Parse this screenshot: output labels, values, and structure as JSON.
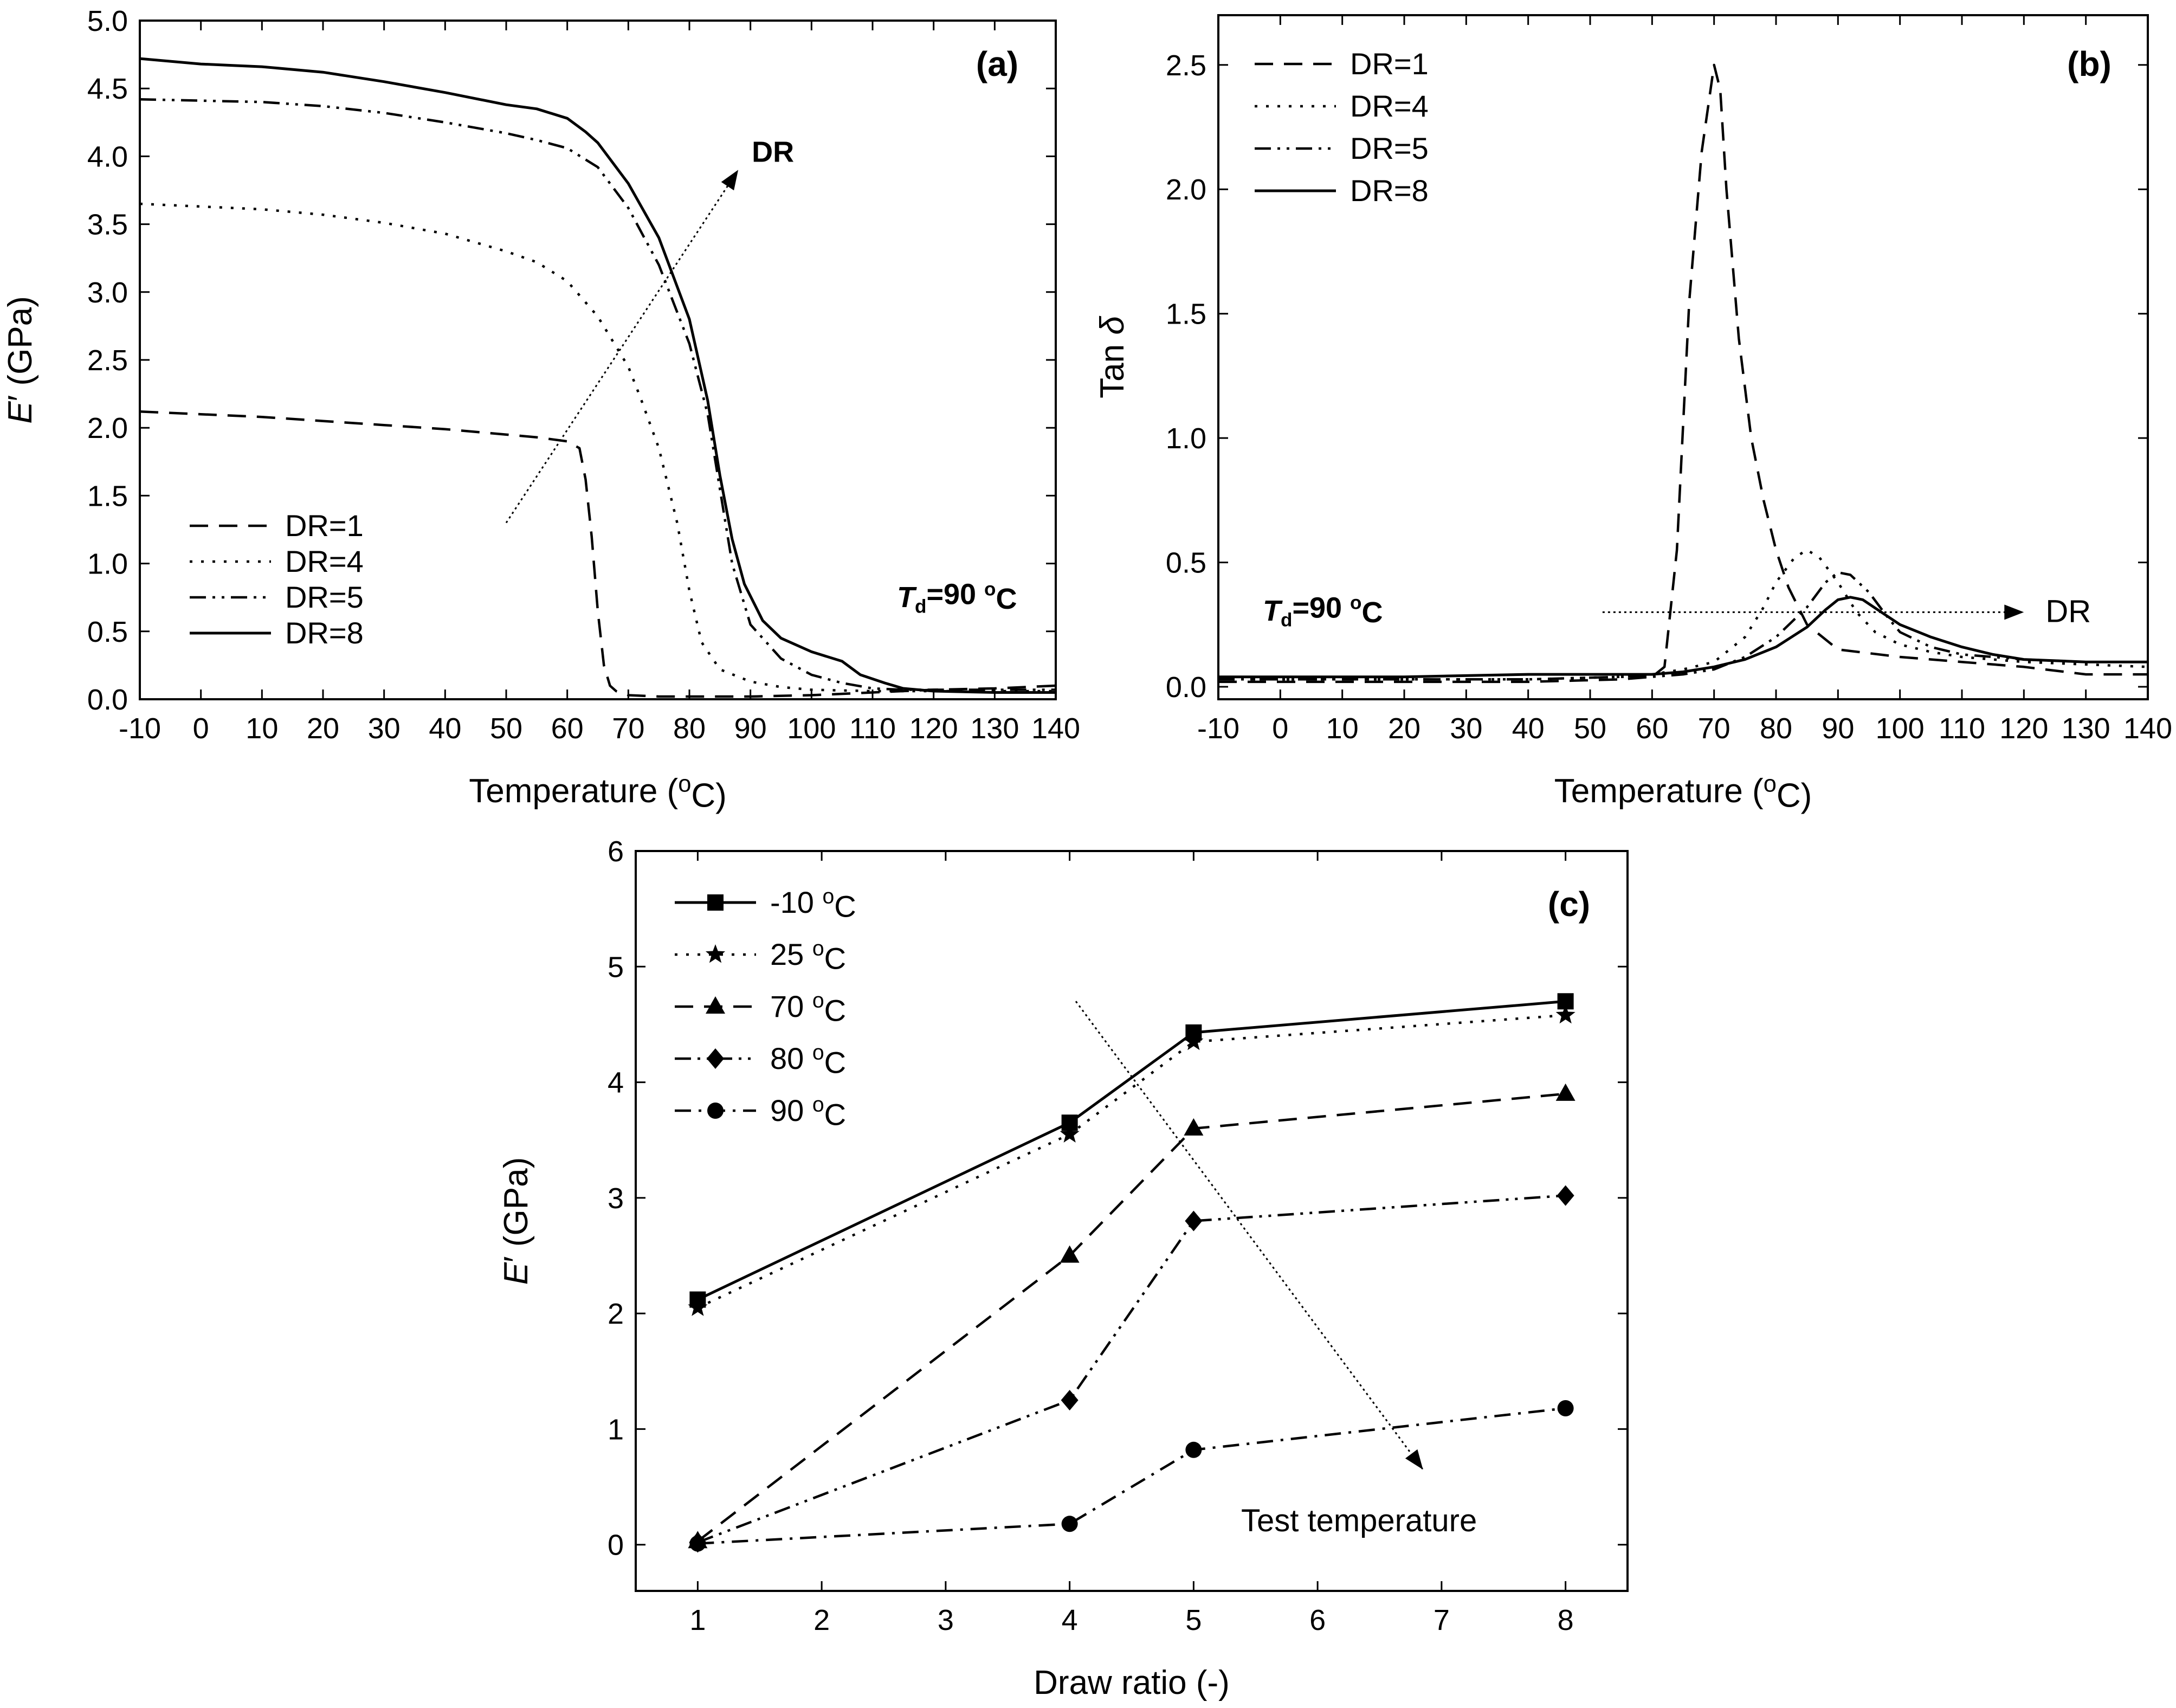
{
  "chart_data": [
    {
      "panel": "(a)",
      "type": "line",
      "xlabel": "Temperature (oC)",
      "ylabel": "E′ (GPa)",
      "xlim": [
        -10,
        140
      ],
      "ylim": [
        0,
        5
      ],
      "xticks": [
        -10,
        0,
        10,
        20,
        30,
        40,
        50,
        60,
        70,
        80,
        90,
        100,
        110,
        120,
        130,
        140
      ],
      "yticks": [
        "0.0",
        "0.5",
        "1.0",
        "1.5",
        "2.0",
        "2.5",
        "3.0",
        "3.5",
        "4.0",
        "4.5",
        "5.0"
      ],
      "legend_position": "bottom-left",
      "annotation_text": "DR",
      "condition_text": "Td=90 oC",
      "arrow": {
        "from": [
          50,
          1.3
        ],
        "to": [
          88,
          3.9
        ],
        "label": "DR"
      },
      "series": [
        {
          "name": "DR=1",
          "dash": "dashed",
          "x": [
            -10,
            0,
            10,
            20,
            30,
            40,
            50,
            55,
            60,
            62,
            63,
            64,
            65,
            66,
            67,
            68,
            70,
            75,
            80,
            90,
            100,
            110,
            120,
            130,
            140
          ],
          "y": [
            2.12,
            2.1,
            2.08,
            2.05,
            2.02,
            1.99,
            1.95,
            1.93,
            1.9,
            1.85,
            1.62,
            1.2,
            0.65,
            0.25,
            0.1,
            0.06,
            0.03,
            0.02,
            0.02,
            0.02,
            0.03,
            0.05,
            0.07,
            0.08,
            0.1
          ]
        },
        {
          "name": "DR=4",
          "dash": "dotted",
          "x": [
            -10,
            0,
            10,
            20,
            30,
            40,
            50,
            55,
            60,
            65,
            70,
            72,
            75,
            78,
            80,
            82,
            85,
            90,
            95,
            100,
            110,
            120,
            130,
            140
          ],
          "y": [
            3.65,
            3.63,
            3.61,
            3.57,
            3.51,
            3.43,
            3.3,
            3.22,
            3.08,
            2.82,
            2.45,
            2.22,
            1.85,
            1.3,
            0.8,
            0.42,
            0.22,
            0.13,
            0.09,
            0.07,
            0.06,
            0.06,
            0.06,
            0.06
          ]
        },
        {
          "name": "DR=5",
          "dash": "dashdotdot",
          "x": [
            -10,
            0,
            10,
            20,
            30,
            40,
            50,
            55,
            60,
            65,
            70,
            75,
            80,
            83,
            85,
            87,
            90,
            95,
            100,
            105,
            110,
            115,
            120,
            130,
            140
          ],
          "y": [
            4.42,
            4.41,
            4.4,
            4.37,
            4.32,
            4.25,
            4.17,
            4.12,
            4.06,
            3.92,
            3.62,
            3.2,
            2.62,
            2.1,
            1.55,
            1.0,
            0.55,
            0.3,
            0.18,
            0.12,
            0.08,
            0.07,
            0.07,
            0.07,
            0.07
          ]
        },
        {
          "name": "DR=8",
          "dash": "solid",
          "x": [
            -10,
            0,
            5,
            10,
            20,
            30,
            40,
            50,
            55,
            60,
            63,
            65,
            70,
            75,
            80,
            83,
            85,
            87,
            89,
            92,
            95,
            100,
            105,
            108,
            112,
            115,
            120,
            130,
            140
          ],
          "y": [
            4.72,
            4.68,
            4.67,
            4.66,
            4.62,
            4.55,
            4.47,
            4.38,
            4.35,
            4.28,
            4.18,
            4.1,
            3.8,
            3.4,
            2.8,
            2.2,
            1.65,
            1.18,
            0.85,
            0.58,
            0.45,
            0.35,
            0.28,
            0.18,
            0.12,
            0.08,
            0.06,
            0.05,
            0.05
          ]
        }
      ]
    },
    {
      "panel": "(b)",
      "type": "line",
      "xlabel": "Temperature (oC)",
      "ylabel": "Tan δ",
      "xlim": [
        -10,
        140
      ],
      "ylim": [
        -0.05,
        2.7
      ],
      "xticks": [
        -10,
        0,
        10,
        20,
        30,
        40,
        50,
        60,
        70,
        80,
        90,
        100,
        110,
        120,
        130,
        140
      ],
      "yticks": [
        "0.0",
        "0.5",
        "1.0",
        "1.5",
        "2.0",
        "2.5"
      ],
      "legend_position": "top-left",
      "annotation_text": "DR",
      "condition_text": "Td=90 oC",
      "arrow": {
        "from": [
          52,
          0.3
        ],
        "to": [
          120,
          0.3
        ],
        "label": "DR"
      },
      "series": [
        {
          "name": "DR=1",
          "dash": "dashed",
          "x": [
            -10,
            0,
            20,
            40,
            55,
            60,
            62,
            64,
            66,
            68,
            70,
            71,
            72,
            74,
            76,
            78,
            80,
            82,
            85,
            90,
            100,
            110,
            120,
            130,
            140
          ],
          "y": [
            0.02,
            0.02,
            0.02,
            0.02,
            0.03,
            0.04,
            0.08,
            0.55,
            1.55,
            2.15,
            2.5,
            2.4,
            2.0,
            1.4,
            1.0,
            0.75,
            0.55,
            0.4,
            0.25,
            0.15,
            0.12,
            0.1,
            0.08,
            0.05,
            0.05
          ]
        },
        {
          "name": "DR=4",
          "dash": "dotted",
          "x": [
            -10,
            0,
            20,
            40,
            55,
            60,
            65,
            70,
            75,
            78,
            80,
            83,
            85,
            87,
            90,
            93,
            96,
            100,
            105,
            110,
            120,
            130,
            140
          ],
          "y": [
            0.03,
            0.03,
            0.03,
            0.03,
            0.04,
            0.05,
            0.07,
            0.1,
            0.2,
            0.32,
            0.42,
            0.52,
            0.55,
            0.52,
            0.42,
            0.3,
            0.22,
            0.17,
            0.14,
            0.12,
            0.1,
            0.09,
            0.08
          ]
        },
        {
          "name": "DR=5",
          "dash": "dashdotdot",
          "x": [
            -10,
            0,
            20,
            40,
            55,
            60,
            65,
            70,
            75,
            80,
            85,
            88,
            90,
            92,
            95,
            98,
            100,
            105,
            110,
            120,
            130,
            140
          ],
          "y": [
            0.03,
            0.03,
            0.03,
            0.03,
            0.04,
            0.04,
            0.05,
            0.07,
            0.12,
            0.2,
            0.32,
            0.42,
            0.46,
            0.45,
            0.38,
            0.28,
            0.22,
            0.16,
            0.13,
            0.11,
            0.1,
            0.1
          ]
        },
        {
          "name": "DR=8",
          "dash": "solid",
          "x": [
            -10,
            0,
            20,
            40,
            55,
            60,
            65,
            70,
            75,
            80,
            85,
            88,
            90,
            92,
            94,
            97,
            100,
            105,
            110,
            115,
            120,
            130,
            140
          ],
          "y": [
            0.04,
            0.04,
            0.04,
            0.05,
            0.05,
            0.05,
            0.06,
            0.08,
            0.11,
            0.16,
            0.24,
            0.31,
            0.35,
            0.36,
            0.35,
            0.3,
            0.25,
            0.2,
            0.16,
            0.13,
            0.11,
            0.1,
            0.1
          ]
        }
      ]
    },
    {
      "panel": "(c)",
      "type": "line",
      "xlabel": "Draw ratio (-)",
      "ylabel": "E′ (GPa)",
      "xlim": [
        0.5,
        8.5
      ],
      "ylim": [
        -0.4,
        6
      ],
      "xticks": [
        1,
        2,
        3,
        4,
        5,
        6,
        7,
        8
      ],
      "yticks": [
        0,
        1,
        2,
        3,
        4,
        5,
        6
      ],
      "legend_position": "top-left",
      "annotation_text": "Test temperature",
      "arrow": {
        "from": [
          4.05,
          4.7
        ],
        "to": [
          6.85,
          0.65
        ],
        "label": "Test temperature"
      },
      "series": [
        {
          "name": "-10 oC",
          "dash": "solid",
          "marker": "square",
          "x": [
            1,
            4,
            5,
            8
          ],
          "y": [
            2.12,
            3.65,
            4.43,
            4.7
          ]
        },
        {
          "name": "25 oC",
          "dash": "dotted",
          "marker": "star",
          "x": [
            1,
            4,
            5,
            8
          ],
          "y": [
            2.05,
            3.55,
            4.35,
            4.58
          ]
        },
        {
          "name": "70 oC",
          "dash": "dashed",
          "marker": "triangle",
          "x": [
            1,
            4,
            5,
            8
          ],
          "y": [
            0.03,
            2.5,
            3.6,
            3.9
          ]
        },
        {
          "name": "80 oC",
          "dash": "dashdotdot",
          "marker": "diamond",
          "x": [
            1,
            4,
            5,
            8
          ],
          "y": [
            0.02,
            1.25,
            2.8,
            3.02
          ]
        },
        {
          "name": "90 oC",
          "dash": "dashdot",
          "marker": "circle",
          "x": [
            1,
            4,
            5,
            8
          ],
          "y": [
            0.01,
            0.18,
            0.82,
            1.18
          ]
        }
      ]
    }
  ]
}
